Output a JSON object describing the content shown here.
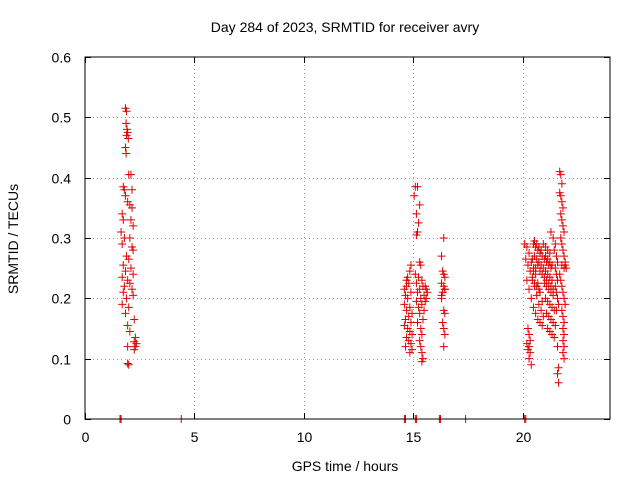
{
  "chart_data": {
    "type": "scatter",
    "title": "Day 284 of 2023, SRMTID for receiver avry",
    "xlabel": "GPS time / hours",
    "ylabel": "SRMTID / TECUs",
    "xlim": [
      0,
      24
    ],
    "ylim": [
      0,
      0.6
    ],
    "xticks": [
      0,
      5,
      10,
      15,
      20
    ],
    "xtick_labels": [
      "0",
      "5",
      "10",
      "15",
      "20"
    ],
    "yticks": [
      0,
      0.1,
      0.2,
      0.3,
      0.4,
      0.5,
      0.6
    ],
    "ytick_labels": [
      "0",
      "0.1",
      "0.2",
      "0.3",
      "0.4",
      "0.5",
      "0.6"
    ],
    "grid": true,
    "marker": "+",
    "color": "#e00000",
    "series": [
      {
        "name": "SRMTID",
        "points": [
          [
            1.6,
            0.0
          ],
          [
            1.65,
            0.0
          ],
          [
            4.4,
            0.0
          ],
          [
            14.6,
            0.0
          ],
          [
            14.65,
            0.0
          ],
          [
            15.1,
            0.0
          ],
          [
            15.15,
            0.0
          ],
          [
            16.2,
            0.0
          ],
          [
            16.25,
            0.0
          ],
          [
            17.4,
            0.0
          ],
          [
            20.1,
            0.0
          ],
          [
            20.15,
            0.0
          ],
          [
            1.85,
            0.515
          ],
          [
            1.9,
            0.51
          ],
          [
            1.88,
            0.49
          ],
          [
            1.92,
            0.48
          ],
          [
            1.95,
            0.475
          ],
          [
            1.9,
            0.47
          ],
          [
            1.98,
            0.465
          ],
          [
            1.85,
            0.45
          ],
          [
            1.88,
            0.44
          ],
          [
            2.0,
            0.405
          ],
          [
            2.1,
            0.405
          ],
          [
            1.75,
            0.385
          ],
          [
            1.8,
            0.38
          ],
          [
            2.15,
            0.38
          ],
          [
            1.85,
            0.37
          ],
          [
            1.95,
            0.36
          ],
          [
            2.05,
            0.355
          ],
          [
            2.15,
            0.35
          ],
          [
            1.7,
            0.34
          ],
          [
            1.75,
            0.33
          ],
          [
            2.1,
            0.33
          ],
          [
            2.2,
            0.32
          ],
          [
            1.65,
            0.31
          ],
          [
            1.8,
            0.3
          ],
          [
            2.05,
            0.3
          ],
          [
            1.7,
            0.29
          ],
          [
            2.15,
            0.285
          ],
          [
            2.2,
            0.28
          ],
          [
            1.9,
            0.27
          ],
          [
            2.0,
            0.265
          ],
          [
            1.75,
            0.255
          ],
          [
            2.1,
            0.25
          ],
          [
            1.85,
            0.245
          ],
          [
            2.2,
            0.24
          ],
          [
            1.7,
            0.235
          ],
          [
            1.95,
            0.23
          ],
          [
            2.05,
            0.225
          ],
          [
            1.8,
            0.22
          ],
          [
            2.15,
            0.215
          ],
          [
            1.75,
            0.21
          ],
          [
            2.2,
            0.205
          ],
          [
            1.9,
            0.2
          ],
          [
            1.7,
            0.19
          ],
          [
            2.0,
            0.185
          ],
          [
            1.85,
            0.175
          ],
          [
            2.25,
            0.165
          ],
          [
            1.95,
            0.155
          ],
          [
            2.05,
            0.145
          ],
          [
            2.3,
            0.135
          ],
          [
            2.25,
            0.128
          ],
          [
            2.35,
            0.125
          ],
          [
            2.3,
            0.12
          ],
          [
            1.95,
            0.12
          ],
          [
            2.25,
            0.115
          ],
          [
            1.95,
            0.092
          ],
          [
            2.0,
            0.09
          ],
          [
            14.6,
            0.215
          ],
          [
            14.7,
            0.22
          ],
          [
            14.8,
            0.225
          ],
          [
            14.65,
            0.205
          ],
          [
            14.75,
            0.2
          ],
          [
            14.9,
            0.21
          ],
          [
            14.6,
            0.19
          ],
          [
            14.85,
            0.185
          ],
          [
            14.7,
            0.18
          ],
          [
            14.95,
            0.175
          ],
          [
            14.8,
            0.17
          ],
          [
            14.65,
            0.165
          ],
          [
            14.9,
            0.16
          ],
          [
            14.6,
            0.155
          ],
          [
            14.75,
            0.15
          ],
          [
            14.85,
            0.145
          ],
          [
            14.95,
            0.14
          ],
          [
            14.7,
            0.135
          ],
          [
            14.8,
            0.13
          ],
          [
            14.9,
            0.125
          ],
          [
            14.65,
            0.12
          ],
          [
            14.95,
            0.115
          ],
          [
            14.85,
            0.11
          ],
          [
            14.75,
            0.235
          ],
          [
            14.85,
            0.245
          ],
          [
            14.9,
            0.255
          ],
          [
            14.7,
            0.23
          ],
          [
            15.1,
            0.385
          ],
          [
            15.2,
            0.385
          ],
          [
            15.05,
            0.37
          ],
          [
            15.3,
            0.355
          ],
          [
            15.15,
            0.34
          ],
          [
            15.25,
            0.325
          ],
          [
            15.2,
            0.31
          ],
          [
            15.15,
            0.305
          ],
          [
            15.3,
            0.26
          ],
          [
            15.35,
            0.255
          ],
          [
            15.1,
            0.24
          ],
          [
            15.25,
            0.235
          ],
          [
            15.4,
            0.23
          ],
          [
            15.15,
            0.225
          ],
          [
            15.45,
            0.22
          ],
          [
            15.3,
            0.215
          ],
          [
            15.2,
            0.21
          ],
          [
            15.5,
            0.205
          ],
          [
            15.35,
            0.2
          ],
          [
            15.15,
            0.195
          ],
          [
            15.4,
            0.19
          ],
          [
            15.25,
            0.185
          ],
          [
            15.5,
            0.18
          ],
          [
            15.3,
            0.175
          ],
          [
            15.45,
            0.165
          ],
          [
            15.2,
            0.16
          ],
          [
            15.35,
            0.15
          ],
          [
            15.4,
            0.14
          ],
          [
            15.3,
            0.13
          ],
          [
            15.35,
            0.12
          ],
          [
            15.4,
            0.11
          ],
          [
            15.45,
            0.1
          ],
          [
            15.4,
            0.095
          ],
          [
            15.6,
            0.215
          ],
          [
            15.55,
            0.22
          ],
          [
            15.65,
            0.21
          ],
          [
            15.6,
            0.2
          ],
          [
            15.55,
            0.195
          ],
          [
            16.4,
            0.3
          ],
          [
            16.3,
            0.27
          ],
          [
            16.35,
            0.245
          ],
          [
            16.4,
            0.24
          ],
          [
            16.45,
            0.235
          ],
          [
            16.3,
            0.225
          ],
          [
            16.4,
            0.22
          ],
          [
            16.45,
            0.215
          ],
          [
            16.35,
            0.21
          ],
          [
            16.3,
            0.2
          ],
          [
            16.4,
            0.18
          ],
          [
            16.45,
            0.175
          ],
          [
            16.35,
            0.16
          ],
          [
            16.4,
            0.15
          ],
          [
            16.45,
            0.14
          ],
          [
            16.4,
            0.12
          ],
          [
            16.45,
            0.215
          ],
          [
            16.3,
            0.205
          ],
          [
            20.1,
            0.29
          ],
          [
            20.2,
            0.285
          ],
          [
            20.3,
            0.275
          ],
          [
            20.15,
            0.265
          ],
          [
            20.4,
            0.26
          ],
          [
            20.25,
            0.255
          ],
          [
            20.5,
            0.25
          ],
          [
            20.35,
            0.245
          ],
          [
            20.6,
            0.24
          ],
          [
            20.45,
            0.235
          ],
          [
            20.2,
            0.23
          ],
          [
            20.7,
            0.225
          ],
          [
            20.55,
            0.22
          ],
          [
            20.3,
            0.215
          ],
          [
            20.8,
            0.21
          ],
          [
            20.65,
            0.205
          ],
          [
            20.4,
            0.2
          ],
          [
            20.9,
            0.195
          ],
          [
            20.75,
            0.19
          ],
          [
            20.5,
            0.185
          ],
          [
            20.85,
            0.18
          ],
          [
            20.6,
            0.175
          ],
          [
            20.95,
            0.17
          ],
          [
            20.7,
            0.165
          ],
          [
            20.8,
            0.16
          ],
          [
            20.9,
            0.155
          ],
          [
            20.25,
            0.15
          ],
          [
            20.3,
            0.14
          ],
          [
            20.35,
            0.13
          ],
          [
            20.2,
            0.125
          ],
          [
            20.3,
            0.12
          ],
          [
            20.25,
            0.115
          ],
          [
            20.35,
            0.11
          ],
          [
            20.3,
            0.1
          ],
          [
            20.4,
            0.09
          ],
          [
            20.5,
            0.29
          ],
          [
            20.6,
            0.285
          ],
          [
            20.7,
            0.28
          ],
          [
            20.8,
            0.275
          ],
          [
            20.9,
            0.27
          ],
          [
            21.0,
            0.265
          ],
          [
            21.1,
            0.26
          ],
          [
            21.2,
            0.255
          ],
          [
            21.3,
            0.25
          ],
          [
            21.05,
            0.245
          ],
          [
            21.15,
            0.24
          ],
          [
            21.25,
            0.235
          ],
          [
            21.35,
            0.23
          ],
          [
            21.0,
            0.225
          ],
          [
            21.1,
            0.22
          ],
          [
            21.2,
            0.215
          ],
          [
            21.3,
            0.21
          ],
          [
            21.4,
            0.205
          ],
          [
            21.05,
            0.2
          ],
          [
            21.15,
            0.195
          ],
          [
            21.25,
            0.19
          ],
          [
            21.35,
            0.185
          ],
          [
            21.45,
            0.18
          ],
          [
            21.1,
            0.175
          ],
          [
            21.2,
            0.17
          ],
          [
            21.3,
            0.165
          ],
          [
            21.4,
            0.16
          ],
          [
            21.5,
            0.155
          ],
          [
            21.15,
            0.15
          ],
          [
            21.25,
            0.145
          ],
          [
            21.35,
            0.14
          ],
          [
            21.45,
            0.135
          ],
          [
            20.55,
            0.295
          ],
          [
            20.65,
            0.29
          ],
          [
            20.75,
            0.285
          ],
          [
            20.85,
            0.28
          ],
          [
            20.95,
            0.29
          ],
          [
            21.05,
            0.285
          ],
          [
            21.15,
            0.28
          ],
          [
            21.25,
            0.275
          ],
          [
            20.45,
            0.265
          ],
          [
            20.55,
            0.27
          ],
          [
            20.65,
            0.265
          ],
          [
            20.75,
            0.26
          ],
          [
            20.85,
            0.255
          ],
          [
            20.95,
            0.25
          ],
          [
            21.05,
            0.27
          ],
          [
            21.15,
            0.265
          ],
          [
            21.25,
            0.26
          ],
          [
            21.35,
            0.255
          ],
          [
            20.5,
            0.245
          ],
          [
            20.6,
            0.25
          ],
          [
            20.7,
            0.255
          ],
          [
            20.8,
            0.245
          ],
          [
            20.9,
            0.24
          ],
          [
            21.0,
            0.235
          ],
          [
            21.1,
            0.23
          ],
          [
            21.2,
            0.225
          ],
          [
            21.3,
            0.22
          ],
          [
            21.4,
            0.215
          ],
          [
            20.45,
            0.23
          ],
          [
            20.55,
            0.225
          ],
          [
            20.65,
            0.22
          ],
          [
            20.75,
            0.215
          ],
          [
            21.3,
            0.31
          ],
          [
            21.4,
            0.3
          ],
          [
            21.5,
            0.29
          ],
          [
            21.45,
            0.28
          ],
          [
            21.55,
            0.27
          ],
          [
            21.6,
            0.26
          ],
          [
            21.5,
            0.25
          ],
          [
            21.55,
            0.24
          ],
          [
            21.6,
            0.23
          ],
          [
            21.5,
            0.22
          ],
          [
            21.55,
            0.21
          ],
          [
            21.6,
            0.2
          ],
          [
            21.65,
            0.19
          ],
          [
            21.55,
            0.18
          ],
          [
            21.7,
            0.41
          ],
          [
            21.75,
            0.405
          ],
          [
            21.8,
            0.39
          ],
          [
            21.7,
            0.375
          ],
          [
            21.75,
            0.37
          ],
          [
            21.8,
            0.36
          ],
          [
            21.85,
            0.35
          ],
          [
            21.75,
            0.34
          ],
          [
            21.8,
            0.33
          ],
          [
            21.85,
            0.32
          ],
          [
            21.9,
            0.31
          ],
          [
            21.75,
            0.3
          ],
          [
            21.8,
            0.29
          ],
          [
            21.85,
            0.28
          ],
          [
            21.9,
            0.27
          ],
          [
            21.95,
            0.26
          ],
          [
            21.8,
            0.255
          ],
          [
            21.9,
            0.25
          ],
          [
            21.7,
            0.24
          ],
          [
            21.75,
            0.23
          ],
          [
            21.8,
            0.22
          ],
          [
            21.85,
            0.21
          ],
          [
            21.9,
            0.2
          ],
          [
            21.95,
            0.19
          ],
          [
            21.8,
            0.18
          ],
          [
            21.85,
            0.17
          ],
          [
            21.9,
            0.16
          ],
          [
            21.85,
            0.15
          ],
          [
            21.9,
            0.14
          ],
          [
            21.85,
            0.13
          ],
          [
            21.9,
            0.12
          ],
          [
            21.85,
            0.11
          ],
          [
            21.9,
            0.1
          ],
          [
            21.6,
            0.12
          ],
          [
            21.65,
            0.085
          ],
          [
            21.6,
            0.075
          ],
          [
            21.65,
            0.06
          ],
          [
            21.95,
            0.255
          ],
          [
            22.0,
            0.25
          ]
        ]
      }
    ]
  }
}
